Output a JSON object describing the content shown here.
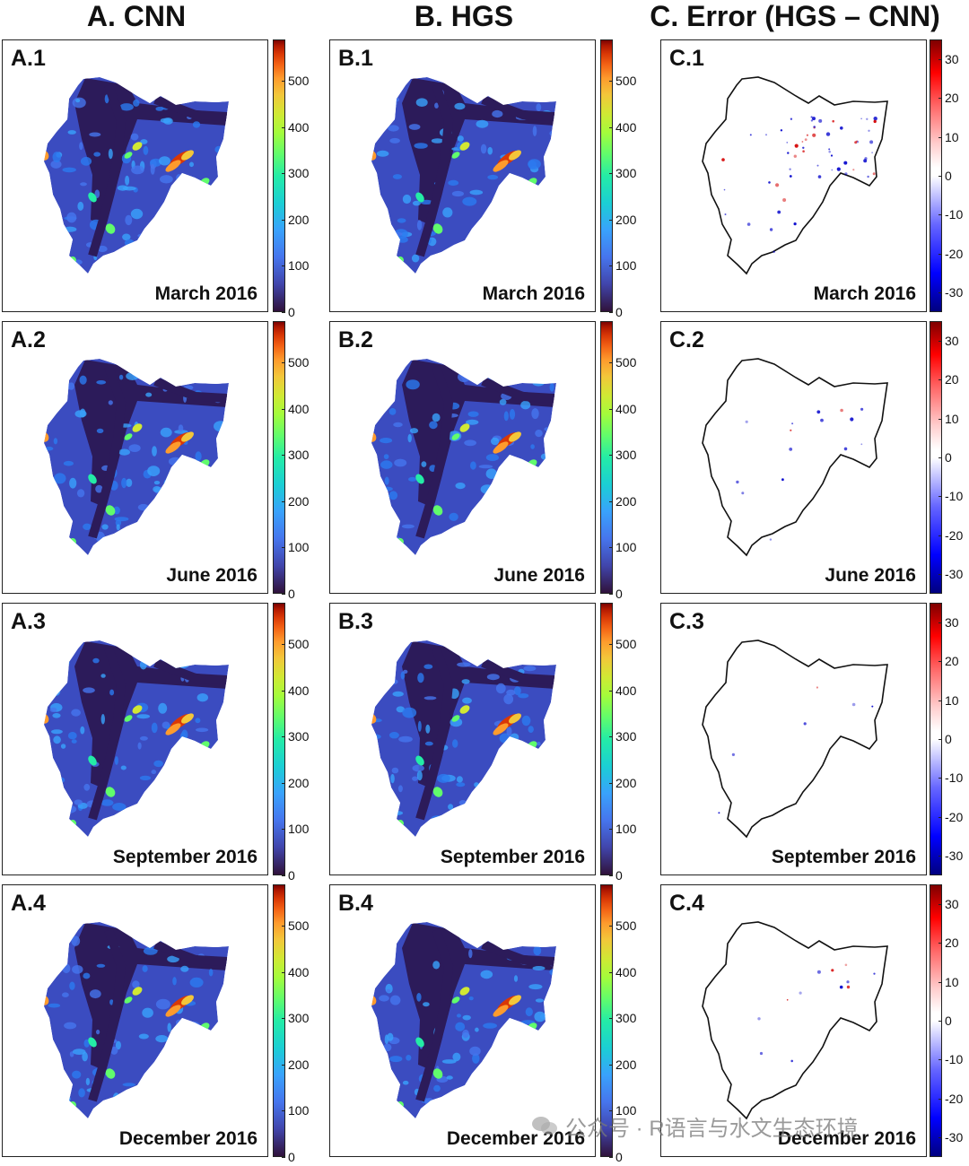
{
  "figure": {
    "columns": [
      {
        "key": "A",
        "title": "A. CNN"
      },
      {
        "key": "B",
        "title": "B. HGS"
      },
      {
        "key": "C",
        "title": "C. Error (HGS – CNN)"
      }
    ],
    "rows": [
      {
        "date": "March 2016"
      },
      {
        "date": "June 2016"
      },
      {
        "date": "September 2016"
      },
      {
        "date": "December 2016"
      }
    ],
    "panel_labels": [
      [
        "A.1",
        "B.1",
        "C.1"
      ],
      [
        "A.2",
        "B.2",
        "C.2"
      ],
      [
        "A.3",
        "B.3",
        "C.3"
      ],
      [
        "A.4",
        "B.4",
        "C.4"
      ]
    ]
  },
  "colors": {
    "outline": "#111111",
    "error_positive": "#d40000",
    "error_negative": "#0000cc"
  },
  "chart_data": [
    {
      "type": "heatmap",
      "title": "A. CNN",
      "panels": [
        "A.1",
        "A.2",
        "A.3",
        "A.4"
      ],
      "dates": [
        "March 2016",
        "June 2016",
        "September 2016",
        "December 2016"
      ],
      "colorbar": {
        "ticks": [
          0,
          100,
          200,
          300,
          400,
          500
        ],
        "range": [
          0,
          590
        ],
        "colormap": "turbo"
      }
    },
    {
      "type": "heatmap",
      "title": "B. HGS",
      "panels": [
        "B.1",
        "B.2",
        "B.3",
        "B.4"
      ],
      "dates": [
        "March 2016",
        "June 2016",
        "September 2016",
        "December 2016"
      ],
      "colorbar": {
        "ticks": [
          0,
          100,
          200,
          300,
          400,
          500
        ],
        "range": [
          0,
          590
        ],
        "colormap": "turbo"
      }
    },
    {
      "type": "heatmap",
      "title": "C. Error (HGS – CNN)",
      "panels": [
        "C.1",
        "C.2",
        "C.3",
        "C.4"
      ],
      "dates": [
        "March 2016",
        "June 2016",
        "September 2016",
        "December 2016"
      ],
      "colorbar": {
        "ticks": [
          -30,
          -20,
          -10,
          0,
          10,
          20,
          30
        ],
        "range": [
          -35,
          35
        ],
        "colormap": "seismic"
      },
      "error_density": [
        1.0,
        0.25,
        0.1,
        0.2
      ]
    }
  ],
  "watermark": {
    "text": "公众号 · R语言与水文生态环境"
  }
}
